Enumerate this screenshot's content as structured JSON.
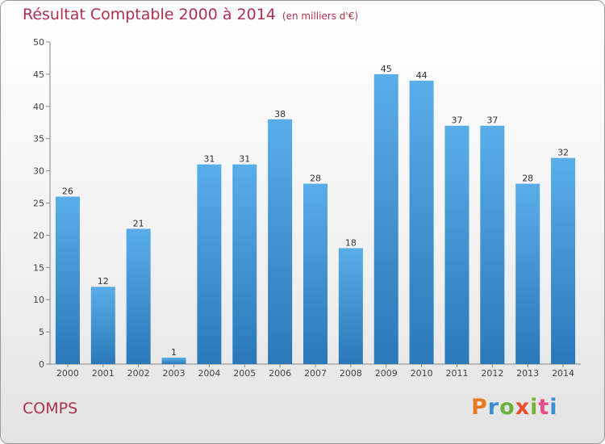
{
  "header": {
    "title": "Résultat Comptable 2000 à 2014",
    "subtitle": "(en milliers d'€)"
  },
  "footer": {
    "place": "COMPS",
    "logo_text": "Proxiti",
    "logo_colors": [
      "#e87a1e",
      "#3a8fd6",
      "#6cb33e",
      "#e8502a",
      "#7ab33e",
      "#e64b8c",
      "#3a8fd6"
    ]
  },
  "colors": {
    "bar_top": "#5aaee8",
    "bar_bottom": "#2a78b8",
    "title": "#b03050"
  },
  "chart_data": {
    "type": "bar",
    "title": "Résultat Comptable 2000 à 2014",
    "xlabel": "",
    "ylabel": "",
    "categories": [
      "2000",
      "2001",
      "2002",
      "2003",
      "2004",
      "2005",
      "2006",
      "2007",
      "2008",
      "2009",
      "2010",
      "2011",
      "2012",
      "2013",
      "2014"
    ],
    "values": [
      26,
      12,
      21,
      1,
      31,
      31,
      38,
      28,
      18,
      45,
      44,
      37,
      37,
      28,
      32
    ],
    "ylim": [
      0,
      50
    ],
    "yticks": [
      0,
      5,
      10,
      15,
      20,
      25,
      30,
      35,
      40,
      45,
      50
    ],
    "grid": false
  }
}
